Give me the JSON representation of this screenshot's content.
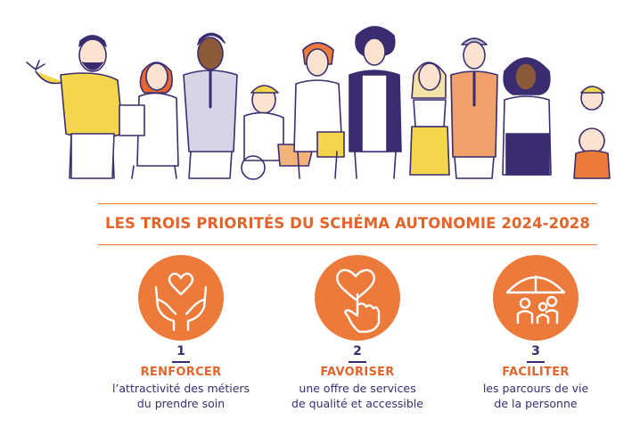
{
  "heading": {
    "title": "LES TROIS PRIORITÉS DU SCHÉMA AUTONOMIE 2024-2028"
  },
  "colors": {
    "accent": "#ec7a3b",
    "text_dark": "#3b2c70",
    "title": "#e2642a",
    "yellow": "#f3d64b"
  },
  "priorities": [
    {
      "number": "1",
      "verb": "RENFORCER",
      "line1": "l’attractivité des métiers",
      "line2": "du prendre soin",
      "icon": "heart-in-hands-icon"
    },
    {
      "number": "2",
      "verb": "FAVORISER",
      "line1": "une offre de services",
      "line2": "de qualité et accessible",
      "icon": "heart-pointing-hand-icon"
    },
    {
      "number": "3",
      "verb": "FACILITER",
      "line1": "les parcours de vie",
      "line2": "de la personne",
      "icon": "family-umbrella-icon"
    }
  ]
}
